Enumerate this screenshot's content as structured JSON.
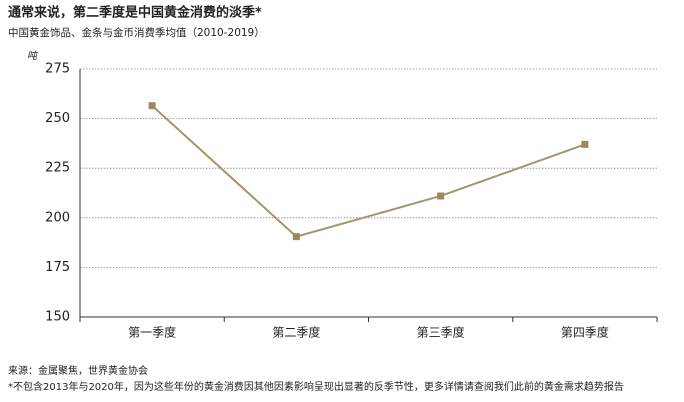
{
  "chart_data": {
    "type": "line",
    "title": "通常来说，第二季度是中国黄金消费的淡季*",
    "subtitle": "中国黄金饰品、金条与金币消费季均值（2010-2019）",
    "y_axis_label": "吨",
    "categories": [
      "第一季度",
      "第二季度",
      "第三季度",
      "第四季度"
    ],
    "series": [
      {
        "color": "#a89468",
        "marker_color": "#9c8a5c",
        "values": [
          256.5,
          190.5,
          211,
          237
        ]
      }
    ],
    "ylim": [
      150,
      275
    ],
    "yticks": [
      150,
      175,
      200,
      225,
      250,
      275
    ],
    "grid": true,
    "source": "来源：金属聚焦，世界黄金协会",
    "note": "*不包含2013年与2020年，因为这些年份的黄金消费因其他因素影响呈现出显著的反季节性，更多详情请查阅我们此前的黄金需求趋势报告"
  }
}
